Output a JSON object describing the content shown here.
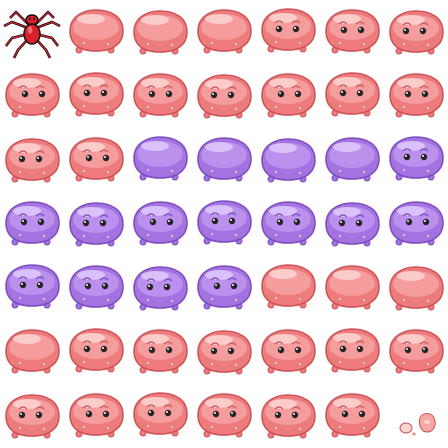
{
  "sprite_sheet": {
    "grid": {
      "rows": 7,
      "cols": 7
    },
    "background": "#ffffff",
    "palette": {
      "pink": {
        "fill": "#ee7b7d",
        "light": "#f6a8a7",
        "shine": "#fbd3cf",
        "outline": "#cc5356",
        "spots": "#f3c0bf"
      },
      "purple": {
        "fill": "#a473e2",
        "light": "#c29cf1",
        "shine": "#dec6fb",
        "outline": "#7d4bbd",
        "spots": "#d7bdf7"
      },
      "eye": "#242424",
      "eye_glint": "#ffffff",
      "spider": "#d91f2a"
    },
    "sprites": [
      {
        "name": "spider-icon",
        "type": "spider",
        "row": 0,
        "col": 0
      },
      {
        "name": "slime-frame",
        "type": "slime",
        "color": "pink",
        "face": "none",
        "row": 0,
        "col": 1
      },
      {
        "name": "slime-frame",
        "type": "slime",
        "color": "pink",
        "face": "none",
        "row": 0,
        "col": 2
      },
      {
        "name": "slime-frame",
        "type": "slime",
        "color": "pink",
        "face": "none",
        "row": 0,
        "col": 3
      },
      {
        "name": "slime-frame",
        "type": "slime",
        "color": "pink",
        "face": "eyes",
        "row": 0,
        "col": 4
      },
      {
        "name": "slime-frame",
        "type": "slime",
        "color": "pink",
        "face": "eyes",
        "row": 0,
        "col": 5
      },
      {
        "name": "slime-frame",
        "type": "slime",
        "color": "pink",
        "face": "eyes",
        "row": 0,
        "col": 6
      },
      {
        "name": "slime-frame",
        "type": "slime",
        "color": "pink",
        "face": "eyes",
        "row": 1,
        "col": 0
      },
      {
        "name": "slime-frame",
        "type": "slime",
        "color": "pink",
        "face": "eyes",
        "row": 1,
        "col": 1
      },
      {
        "name": "slime-frame",
        "type": "slime",
        "color": "pink",
        "face": "eyes",
        "row": 1,
        "col": 2
      },
      {
        "name": "slime-frame",
        "type": "slime",
        "color": "pink",
        "face": "eyes",
        "row": 1,
        "col": 3
      },
      {
        "name": "slime-frame",
        "type": "slime",
        "color": "pink",
        "face": "eyes",
        "row": 1,
        "col": 4
      },
      {
        "name": "slime-frame",
        "type": "slime",
        "color": "pink",
        "face": "eyes",
        "row": 1,
        "col": 5
      },
      {
        "name": "slime-frame",
        "type": "slime",
        "color": "pink",
        "face": "eyes",
        "row": 1,
        "col": 6
      },
      {
        "name": "slime-frame",
        "type": "slime",
        "color": "pink",
        "face": "eyes",
        "row": 2,
        "col": 0
      },
      {
        "name": "slime-frame",
        "type": "slime",
        "color": "pink",
        "face": "eyes",
        "row": 2,
        "col": 1
      },
      {
        "name": "slime-frame",
        "type": "slime",
        "color": "purple",
        "face": "none",
        "row": 2,
        "col": 2
      },
      {
        "name": "slime-frame",
        "type": "slime",
        "color": "purple",
        "face": "none",
        "row": 2,
        "col": 3
      },
      {
        "name": "slime-frame",
        "type": "slime",
        "color": "purple",
        "face": "none",
        "row": 2,
        "col": 4
      },
      {
        "name": "slime-frame",
        "type": "slime",
        "color": "purple",
        "face": "none",
        "row": 2,
        "col": 5
      },
      {
        "name": "slime-frame",
        "type": "slime",
        "color": "purple",
        "face": "eyes",
        "row": 2,
        "col": 6
      },
      {
        "name": "slime-frame",
        "type": "slime",
        "color": "purple",
        "face": "eyes",
        "row": 3,
        "col": 0
      },
      {
        "name": "slime-frame",
        "type": "slime",
        "color": "purple",
        "face": "eyes",
        "row": 3,
        "col": 1
      },
      {
        "name": "slime-frame",
        "type": "slime",
        "color": "purple",
        "face": "eyes",
        "row": 3,
        "col": 2
      },
      {
        "name": "slime-frame",
        "type": "slime",
        "color": "purple",
        "face": "eyes",
        "row": 3,
        "col": 3
      },
      {
        "name": "slime-frame",
        "type": "slime",
        "color": "purple",
        "face": "eyes",
        "row": 3,
        "col": 4
      },
      {
        "name": "slime-frame",
        "type": "slime",
        "color": "purple",
        "face": "eyes",
        "row": 3,
        "col": 5
      },
      {
        "name": "slime-frame",
        "type": "slime",
        "color": "purple",
        "face": "eyes",
        "row": 3,
        "col": 6
      },
      {
        "name": "slime-frame",
        "type": "slime",
        "color": "purple",
        "face": "eyes",
        "row": 4,
        "col": 0
      },
      {
        "name": "slime-frame",
        "type": "slime",
        "color": "purple",
        "face": "eyes",
        "row": 4,
        "col": 1
      },
      {
        "name": "slime-frame",
        "type": "slime",
        "color": "purple",
        "face": "eyes",
        "row": 4,
        "col": 2
      },
      {
        "name": "slime-frame",
        "type": "slime",
        "color": "purple",
        "face": "eyes",
        "row": 4,
        "col": 3
      },
      {
        "name": "slime-frame",
        "type": "slime",
        "color": "pink",
        "face": "none",
        "row": 4,
        "col": 4
      },
      {
        "name": "slime-frame",
        "type": "slime",
        "color": "pink",
        "face": "none",
        "row": 4,
        "col": 5
      },
      {
        "name": "slime-frame",
        "type": "slime",
        "color": "pink",
        "face": "none",
        "row": 4,
        "col": 6
      },
      {
        "name": "slime-frame",
        "type": "slime",
        "color": "pink",
        "face": "none",
        "row": 5,
        "col": 0
      },
      {
        "name": "slime-frame",
        "type": "slime",
        "color": "pink",
        "face": "eyes",
        "row": 5,
        "col": 1
      },
      {
        "name": "slime-frame",
        "type": "slime",
        "color": "pink",
        "face": "eyes",
        "row": 5,
        "col": 2
      },
      {
        "name": "slime-frame",
        "type": "slime",
        "color": "pink",
        "face": "eyes",
        "row": 5,
        "col": 3
      },
      {
        "name": "slime-frame",
        "type": "slime",
        "color": "pink",
        "face": "eyes",
        "row": 5,
        "col": 4
      },
      {
        "name": "slime-frame",
        "type": "slime",
        "color": "pink",
        "face": "eyes",
        "row": 5,
        "col": 5
      },
      {
        "name": "slime-frame",
        "type": "slime",
        "color": "pink",
        "face": "eyes",
        "row": 5,
        "col": 6
      },
      {
        "name": "slime-frame",
        "type": "slime",
        "color": "pink",
        "face": "eyes",
        "row": 6,
        "col": 0
      },
      {
        "name": "slime-frame",
        "type": "slime",
        "color": "pink",
        "face": "eyes",
        "row": 6,
        "col": 1
      },
      {
        "name": "slime-frame",
        "type": "slime",
        "color": "pink",
        "face": "eyes",
        "row": 6,
        "col": 2
      },
      {
        "name": "slime-frame",
        "type": "slime",
        "color": "pink",
        "face": "eyes",
        "row": 6,
        "col": 3
      },
      {
        "name": "slime-frame",
        "type": "slime",
        "color": "pink",
        "face": "eyes",
        "row": 6,
        "col": 4
      },
      {
        "name": "slime-frame",
        "type": "slime",
        "color": "pink",
        "face": "eyes",
        "row": 6,
        "col": 5
      },
      {
        "name": "slime-fragments",
        "type": "fragments",
        "color": "pink",
        "row": 6,
        "col": 6
      }
    ]
  }
}
